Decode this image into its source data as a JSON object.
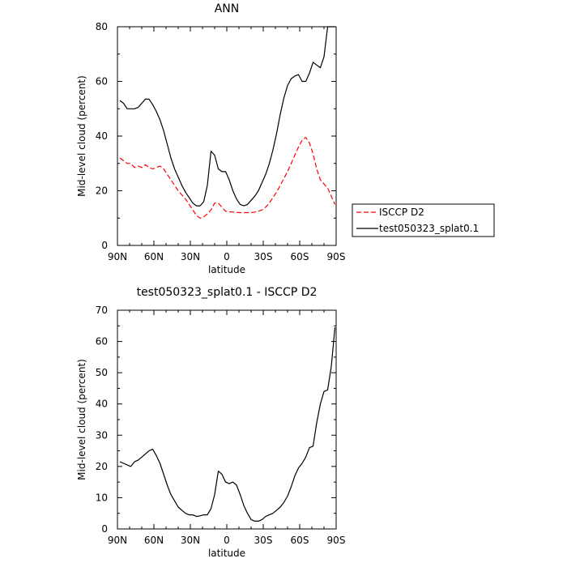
{
  "chart_data": [
    {
      "type": "line",
      "title": "ANN",
      "xlabel": "latitude",
      "ylabel": "Mid-level cloud (percent)",
      "xlim": [
        90,
        -90
      ],
      "ylim": [
        0,
        80
      ],
      "x_ticks": [
        {
          "value": 90,
          "label": "90N"
        },
        {
          "value": 60,
          "label": "60N"
        },
        {
          "value": 30,
          "label": "30N"
        },
        {
          "value": 0,
          "label": "0"
        },
        {
          "value": -30,
          "label": "30S"
        },
        {
          "value": -60,
          "label": "60S"
        },
        {
          "value": -90,
          "label": "90S"
        }
      ],
      "y_ticks": [
        {
          "value": 0,
          "label": "0"
        },
        {
          "value": 20,
          "label": "20"
        },
        {
          "value": 40,
          "label": "40"
        },
        {
          "value": 60,
          "label": "60"
        },
        {
          "value": 80,
          "label": "80"
        }
      ],
      "legend": {
        "placement": "right"
      },
      "series": [
        {
          "name": "ISCCP D2",
          "color": "#ff0000",
          "dash": "dashed",
          "x": [
            88,
            85,
            82,
            79,
            76,
            73,
            70,
            67,
            64,
            61,
            58,
            55,
            52,
            49,
            46,
            43,
            40,
            37,
            34,
            31,
            28,
            25,
            22,
            19,
            16,
            13,
            10,
            7,
            4,
            1,
            -2,
            -5,
            -8,
            -11,
            -14,
            -17,
            -20,
            -23,
            -26,
            -29,
            -32,
            -35,
            -38,
            -41,
            -44,
            -47,
            -50,
            -53,
            -56,
            -59,
            -62,
            -65,
            -68,
            -71,
            -74,
            -77,
            -80,
            -83,
            -86,
            -89
          ],
          "y": [
            32,
            31,
            30,
            30,
            28.5,
            29,
            28.5,
            29.5,
            28.5,
            28,
            28.5,
            29,
            28,
            26,
            24,
            22,
            20,
            18.5,
            17,
            15,
            13,
            11,
            10,
            10.5,
            11.5,
            13,
            15.5,
            15.5,
            14,
            12.5,
            12.3,
            12.2,
            12.1,
            12,
            12,
            12,
            12,
            12.2,
            12.5,
            13,
            14,
            15.5,
            17.5,
            19.5,
            22,
            24.5,
            27,
            30,
            33,
            36,
            38.5,
            39.5,
            37.5,
            33.5,
            28,
            24,
            22.5,
            21,
            18,
            15
          ]
        },
        {
          "name": "test050323_splat0.1",
          "color": "#000000",
          "dash": "solid",
          "x": [
            88,
            85,
            82,
            79,
            76,
            73,
            70,
            67,
            64,
            61,
            58,
            55,
            52,
            49,
            46,
            43,
            40,
            37,
            34,
            31,
            28,
            25,
            22,
            19,
            16,
            13,
            10,
            7,
            4,
            1,
            -2,
            -5,
            -8,
            -11,
            -14,
            -17,
            -20,
            -23,
            -26,
            -29,
            -32,
            -35,
            -38,
            -41,
            -44,
            -47,
            -50,
            -53,
            -56,
            -59,
            -62,
            -65,
            -68,
            -71,
            -74,
            -77,
            -80,
            -83,
            -86,
            -89
          ],
          "y": [
            53,
            52,
            50,
            50,
            50,
            50.5,
            52,
            53.5,
            53.5,
            51.5,
            49,
            46,
            42,
            37,
            32,
            28,
            25,
            22,
            19.5,
            17.5,
            15.5,
            14.5,
            14.5,
            16,
            22,
            34.5,
            33,
            28,
            27,
            27,
            24,
            20,
            17,
            15,
            14.5,
            15,
            16.5,
            18,
            20,
            23,
            26,
            30,
            35,
            41,
            48,
            54,
            58.5,
            61,
            62,
            62.5,
            60,
            60,
            63,
            67,
            66,
            65,
            69,
            80,
            80,
            80
          ]
        }
      ]
    },
    {
      "type": "line",
      "title": "test050323_splat0.1 - ISCCP D2",
      "xlabel": "latitude",
      "ylabel": "Mid-level cloud (percent)",
      "xlim": [
        90,
        -90
      ],
      "ylim": [
        0,
        70
      ],
      "x_ticks": [
        {
          "value": 90,
          "label": "90N"
        },
        {
          "value": 60,
          "label": "60N"
        },
        {
          "value": 30,
          "label": "30N"
        },
        {
          "value": 0,
          "label": "0"
        },
        {
          "value": -30,
          "label": "30S"
        },
        {
          "value": -60,
          "label": "60S"
        },
        {
          "value": -90,
          "label": "90S"
        }
      ],
      "y_ticks": [
        {
          "value": 0,
          "label": "0"
        },
        {
          "value": 10,
          "label": "10"
        },
        {
          "value": 20,
          "label": "20"
        },
        {
          "value": 30,
          "label": "30"
        },
        {
          "value": 40,
          "label": "40"
        },
        {
          "value": 50,
          "label": "50"
        },
        {
          "value": 60,
          "label": "60"
        },
        {
          "value": 70,
          "label": "70"
        }
      ],
      "series": [
        {
          "color": "#000000",
          "dash": "solid",
          "x": [
            88,
            85,
            82,
            79,
            76,
            73,
            70,
            67,
            64,
            61,
            58,
            55,
            52,
            49,
            46,
            43,
            40,
            37,
            34,
            31,
            28,
            25,
            22,
            19,
            16,
            13,
            10,
            7,
            4,
            1,
            -2,
            -5,
            -8,
            -11,
            -14,
            -17,
            -20,
            -23,
            -26,
            -29,
            -32,
            -35,
            -38,
            -41,
            -44,
            -47,
            -50,
            -53,
            -56,
            -59,
            -62,
            -65,
            -68,
            -71,
            -74,
            -77,
            -80,
            -83,
            -86,
            -89
          ],
          "y": [
            21.5,
            21,
            20.5,
            20,
            21.5,
            22,
            23,
            24,
            25,
            25.5,
            23.5,
            21,
            17.5,
            14,
            11,
            9,
            7,
            6,
            5,
            4.5,
            4.5,
            4,
            4.2,
            4.5,
            4.5,
            6.5,
            11,
            18.5,
            17.5,
            15,
            14.5,
            15,
            14,
            11,
            7.5,
            5,
            3,
            2.5,
            2.5,
            3,
            4,
            4.5,
            5,
            6,
            7,
            8.5,
            10.5,
            13.5,
            17,
            19.5,
            21,
            23,
            26,
            26.5,
            34,
            40,
            44,
            44.5,
            52,
            64.5
          ]
        }
      ]
    }
  ]
}
